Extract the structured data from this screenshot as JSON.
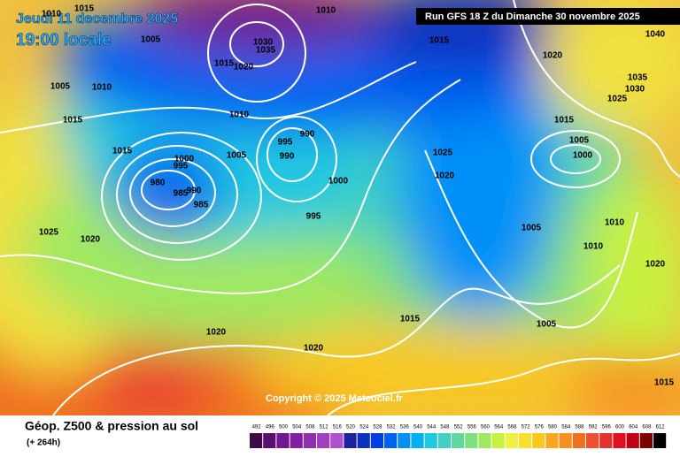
{
  "header": {
    "date": "Jeudi 11 decembre 2025",
    "time": "19:00 locale",
    "run": "Run GFS 18 Z du Dimanche 30 novembre 2025",
    "copyright": "Copyright © 2025 Meteociel.fr"
  },
  "footer": {
    "title": "Géop. Z500 & pression au sol",
    "lead": "(+ 264h)",
    "scale": [
      492,
      496,
      500,
      504,
      508,
      512,
      516,
      520,
      524,
      528,
      532,
      536,
      540,
      544,
      548,
      552,
      556,
      560,
      564,
      568,
      572,
      576,
      580,
      584,
      588,
      592,
      596,
      600,
      604,
      608,
      612
    ]
  },
  "isobar_labels": [
    "1015",
    "1010",
    "1005",
    "1010",
    "1030",
    "1035",
    "1015",
    "1020",
    "1005",
    "1010",
    "1015",
    "1010",
    "1015",
    "995",
    "990",
    "990",
    "1005",
    "1000",
    "995",
    "980",
    "985",
    "990",
    "985",
    "1000",
    "995",
    "1025",
    "1020",
    "1025",
    "1020",
    "1005",
    "1015",
    "1005",
    "1020",
    "1020",
    "1015",
    "1020",
    "1010",
    "1010",
    "1005",
    "1000",
    "1015",
    "1025",
    "1030",
    "1035",
    "1040",
    "1020",
    "1015"
  ]
}
